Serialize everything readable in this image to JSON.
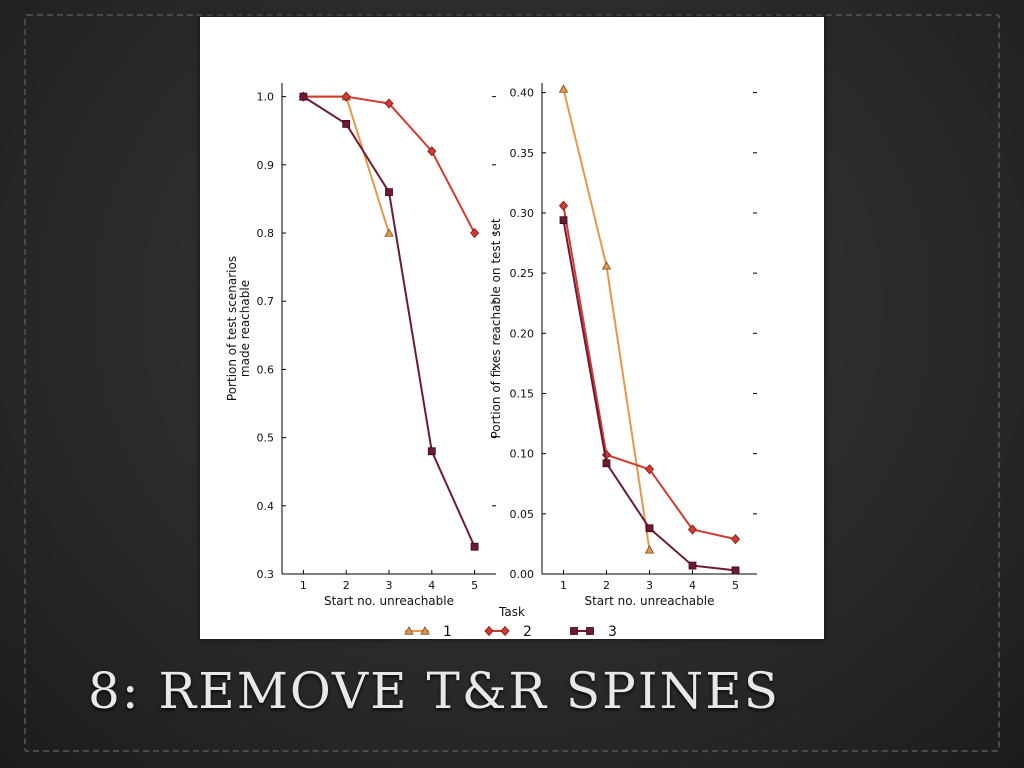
{
  "slide": {
    "title": "8: REMOVE T&R SPINES"
  },
  "legend": {
    "title": "Task",
    "entries": [
      {
        "label": "1",
        "color": "#e8974a",
        "marker": "triangle"
      },
      {
        "label": "2",
        "color": "#d03a32",
        "marker": "diamond"
      },
      {
        "label": "3",
        "color": "#6e1a33",
        "marker": "square"
      }
    ]
  },
  "chart_data": [
    {
      "type": "line",
      "xlabel": "Start no. unreachable",
      "ylabel": [
        "Portion of test scenarios",
        "made reachable"
      ],
      "x": [
        1,
        2,
        3,
        4,
        5
      ],
      "xlim": [
        0.5,
        5.5
      ],
      "ylim": [
        0.3,
        1.02
      ],
      "yticks": [
        "0.3",
        "0.4",
        "0.5",
        "0.6",
        "0.7",
        "0.8",
        "0.9",
        "1.0"
      ],
      "ytick_values": [
        0.3,
        0.4,
        0.5,
        0.6,
        0.7,
        0.8,
        0.9,
        1.0
      ],
      "series": [
        {
          "name": "1",
          "x": [
            1,
            2,
            3
          ],
          "values": [
            1.0,
            1.0,
            0.8
          ]
        },
        {
          "name": "2",
          "x": [
            1,
            2,
            3,
            4,
            5
          ],
          "values": [
            1.0,
            1.0,
            0.99,
            0.92,
            0.8
          ]
        },
        {
          "name": "3",
          "x": [
            1,
            2,
            3,
            4,
            5
          ],
          "values": [
            1.0,
            0.96,
            0.86,
            0.48,
            0.34
          ]
        }
      ]
    },
    {
      "type": "line",
      "xlabel": "Start no. unreachable",
      "ylabel": [
        "Portion of fixes reachable on test set"
      ],
      "x": [
        1,
        2,
        3,
        4,
        5
      ],
      "xlim": [
        0.5,
        5.5
      ],
      "ylim": [
        0.0,
        0.408
      ],
      "yticks": [
        "0.00",
        "0.05",
        "0.10",
        "0.15",
        "0.20",
        "0.25",
        "0.30",
        "0.35",
        "0.40"
      ],
      "ytick_values": [
        0.0,
        0.05,
        0.1,
        0.15,
        0.2,
        0.25,
        0.3,
        0.35,
        0.4
      ],
      "series": [
        {
          "name": "1",
          "x": [
            1,
            2,
            3
          ],
          "values": [
            0.403,
            0.256,
            0.02
          ]
        },
        {
          "name": "2",
          "x": [
            1,
            2,
            3,
            4,
            5
          ],
          "values": [
            0.306,
            0.099,
            0.087,
            0.037,
            0.029
          ]
        },
        {
          "name": "3",
          "x": [
            1,
            2,
            3,
            4,
            5
          ],
          "values": [
            0.294,
            0.092,
            0.038,
            0.007,
            0.003
          ]
        }
      ]
    }
  ]
}
